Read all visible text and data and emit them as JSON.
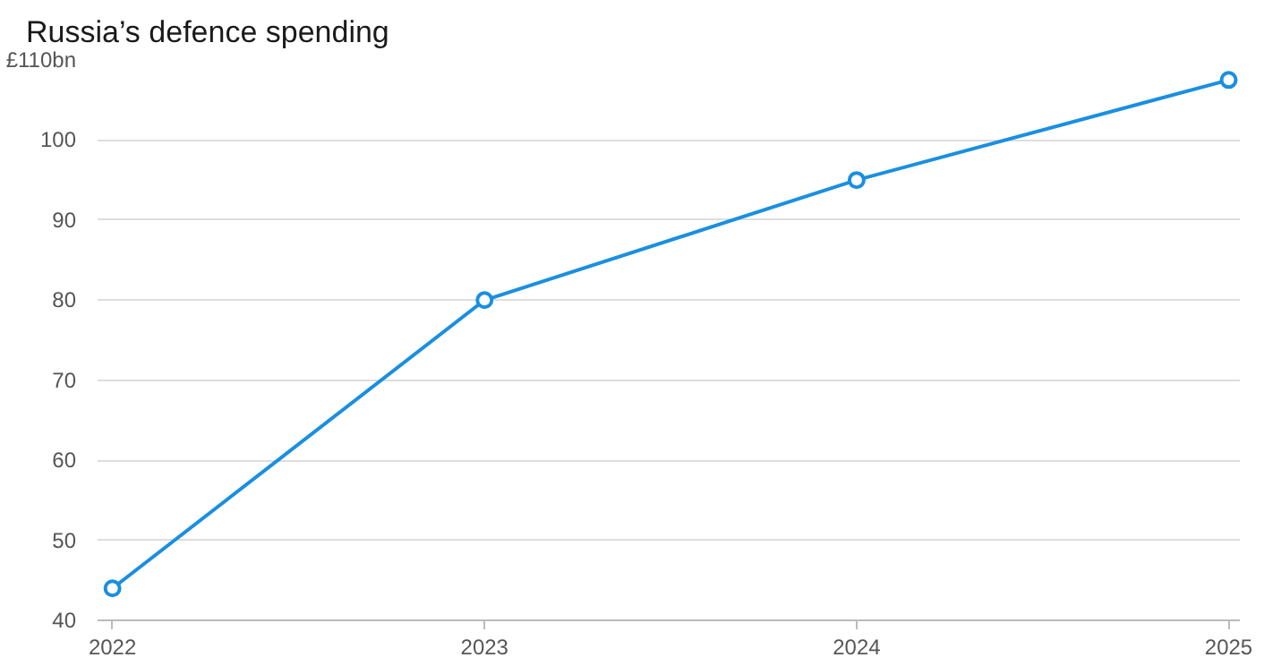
{
  "chart_data": {
    "type": "line",
    "title": "Russia’s defence spending",
    "x": [
      2022,
      2023,
      2024,
      2025
    ],
    "series": [
      {
        "color": "#1a8fe0",
        "values": [
          44,
          80,
          95,
          107.5
        ]
      }
    ],
    "xlim": [
      2021.96,
      2025.03
    ],
    "xticks": [
      2022,
      2023,
      2024,
      2025
    ],
    "ylim": [
      40,
      110
    ],
    "yticks": [
      40,
      50,
      60,
      70,
      80,
      90,
      100,
      {
        "value": 110,
        "label": "£110bn"
      }
    ],
    "grid": "y",
    "marker": "circle",
    "line_style": "solid"
  }
}
